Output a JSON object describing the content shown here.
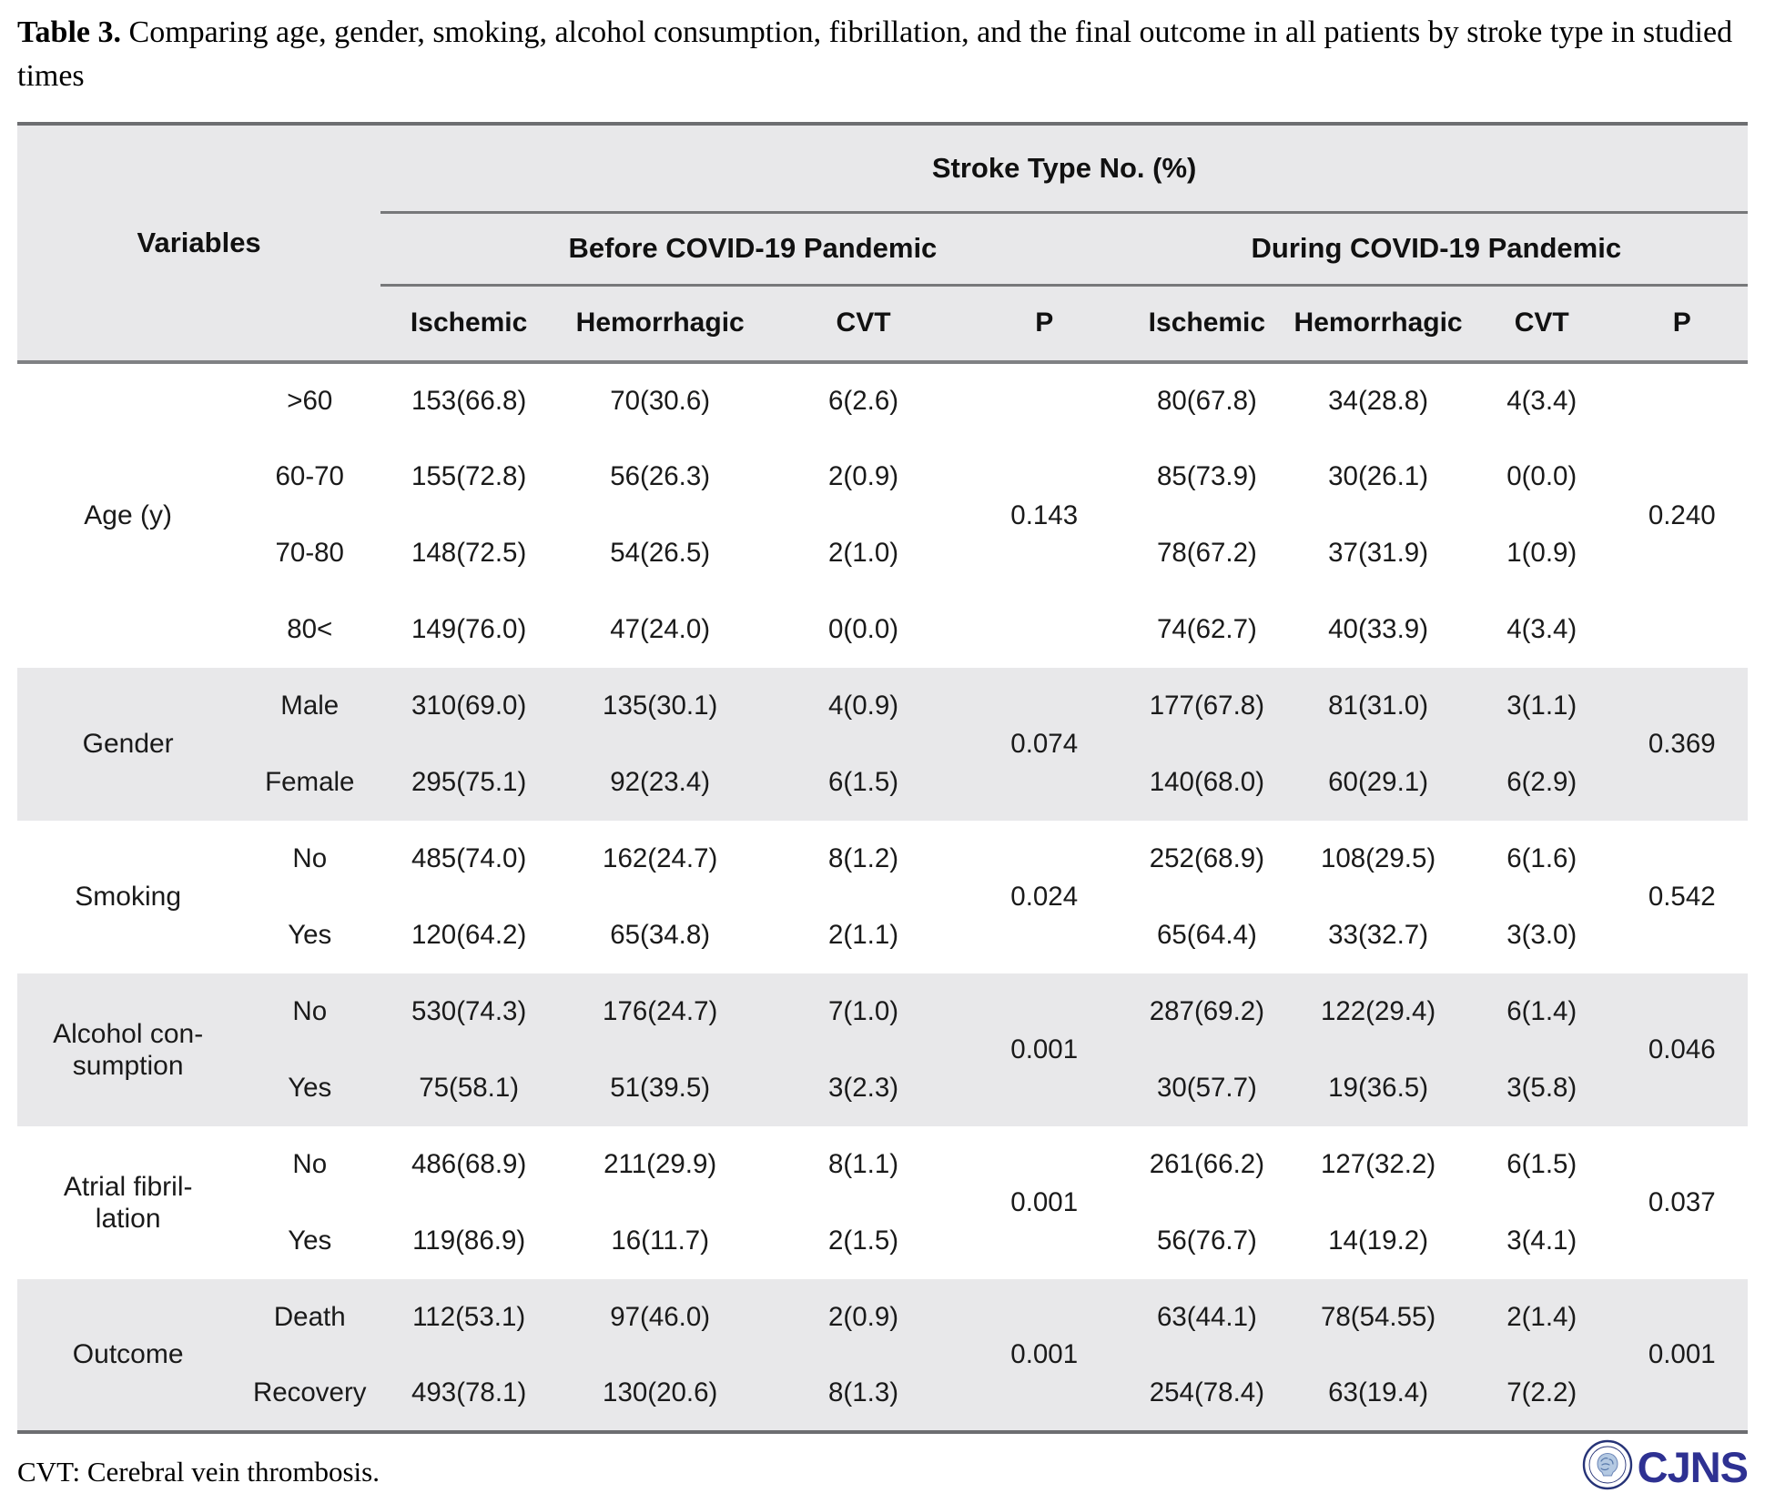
{
  "title": {
    "label": "Table 3.",
    "text": "Comparing age, gender, smoking, alcohol consumption, fibrillation, and the final outcome in all patients by stroke type in studied times"
  },
  "table": {
    "top_header": "Stroke Type No. (%)",
    "variables_header": "Variables",
    "period_headers": [
      "Before COVID-19 Pandemic",
      "During COVID-19 Pandemic"
    ],
    "column_headers": [
      "Ischemic",
      "Hemorrhagic",
      "CVT",
      "P",
      "Ischemic",
      "Hemorrhagic",
      "CVT",
      "P"
    ],
    "sections": [
      {
        "variable": "Age (y)",
        "shaded": false,
        "p_before": "0.143",
        "p_during": "0.240",
        "rows": [
          {
            "category": ">60",
            "before": [
              "153(66.8)",
              "70(30.6)",
              "6(2.6)"
            ],
            "during": [
              "80(67.8)",
              "34(28.8)",
              "4(3.4)"
            ]
          },
          {
            "category": "60-70",
            "before": [
              "155(72.8)",
              "56(26.3)",
              "2(0.9)"
            ],
            "during": [
              "85(73.9)",
              "30(26.1)",
              "0(0.0)"
            ]
          },
          {
            "category": "70-80",
            "before": [
              "148(72.5)",
              "54(26.5)",
              "2(1.0)"
            ],
            "during": [
              "78(67.2)",
              "37(31.9)",
              "1(0.9)"
            ]
          },
          {
            "category": "80<",
            "before": [
              "149(76.0)",
              "47(24.0)",
              "0(0.0)"
            ],
            "during": [
              "74(62.7)",
              "40(33.9)",
              "4(3.4)"
            ]
          }
        ]
      },
      {
        "variable": "Gender",
        "shaded": true,
        "p_before": "0.074",
        "p_during": "0.369",
        "rows": [
          {
            "category": "Male",
            "before": [
              "310(69.0)",
              "135(30.1)",
              "4(0.9)"
            ],
            "during": [
              "177(67.8)",
              "81(31.0)",
              "3(1.1)"
            ]
          },
          {
            "category": "Female",
            "before": [
              "295(75.1)",
              "92(23.4)",
              "6(1.5)"
            ],
            "during": [
              "140(68.0)",
              "60(29.1)",
              "6(2.9)"
            ]
          }
        ]
      },
      {
        "variable": "Smoking",
        "shaded": false,
        "p_before": "0.024",
        "p_during": "0.542",
        "rows": [
          {
            "category": "No",
            "before": [
              "485(74.0)",
              "162(24.7)",
              "8(1.2)"
            ],
            "during": [
              "252(68.9)",
              "108(29.5)",
              "6(1.6)"
            ]
          },
          {
            "category": "Yes",
            "before": [
              "120(64.2)",
              "65(34.8)",
              "2(1.1)"
            ],
            "during": [
              "65(64.4)",
              "33(32.7)",
              "3(3.0)"
            ]
          }
        ]
      },
      {
        "variable": "Alcohol con-\nsumption",
        "shaded": true,
        "p_before": "0.001",
        "p_during": "0.046",
        "rows": [
          {
            "category": "No",
            "before": [
              "530(74.3)",
              "176(24.7)",
              "7(1.0)"
            ],
            "during": [
              "287(69.2)",
              "122(29.4)",
              "6(1.4)"
            ]
          },
          {
            "category": "Yes",
            "before": [
              "75(58.1)",
              "51(39.5)",
              "3(2.3)"
            ],
            "during": [
              "30(57.7)",
              "19(36.5)",
              "3(5.8)"
            ]
          }
        ]
      },
      {
        "variable": "Atrial fibril-\nlation",
        "shaded": false,
        "p_before": "0.001",
        "p_during": "0.037",
        "rows": [
          {
            "category": "No",
            "before": [
              "486(68.9)",
              "211(29.9)",
              "8(1.1)"
            ],
            "during": [
              "261(66.2)",
              "127(32.2)",
              "6(1.5)"
            ]
          },
          {
            "category": "Yes",
            "before": [
              "119(86.9)",
              "16(11.7)",
              "2(1.5)"
            ],
            "during": [
              "56(76.7)",
              "14(19.2)",
              "3(4.1)"
            ]
          }
        ]
      },
      {
        "variable": "Outcome",
        "shaded": true,
        "p_before": "0.001",
        "p_during": "0.001",
        "rows": [
          {
            "category": "Death",
            "before": [
              "112(53.1)",
              "97(46.0)",
              "2(0.9)"
            ],
            "during": [
              "63(44.1)",
              "78(54.55)",
              "2(1.4)"
            ]
          },
          {
            "category": "Recovery",
            "before": [
              "493(78.1)",
              "130(20.6)",
              "8(1.3)"
            ],
            "during": [
              "254(78.4)",
              "63(19.4)",
              "7(2.2)"
            ]
          }
        ]
      }
    ],
    "footnote": "CVT: Cerebral vein thrombosis."
  },
  "logo": {
    "text": "CJNS",
    "color": "#2e3192"
  }
}
